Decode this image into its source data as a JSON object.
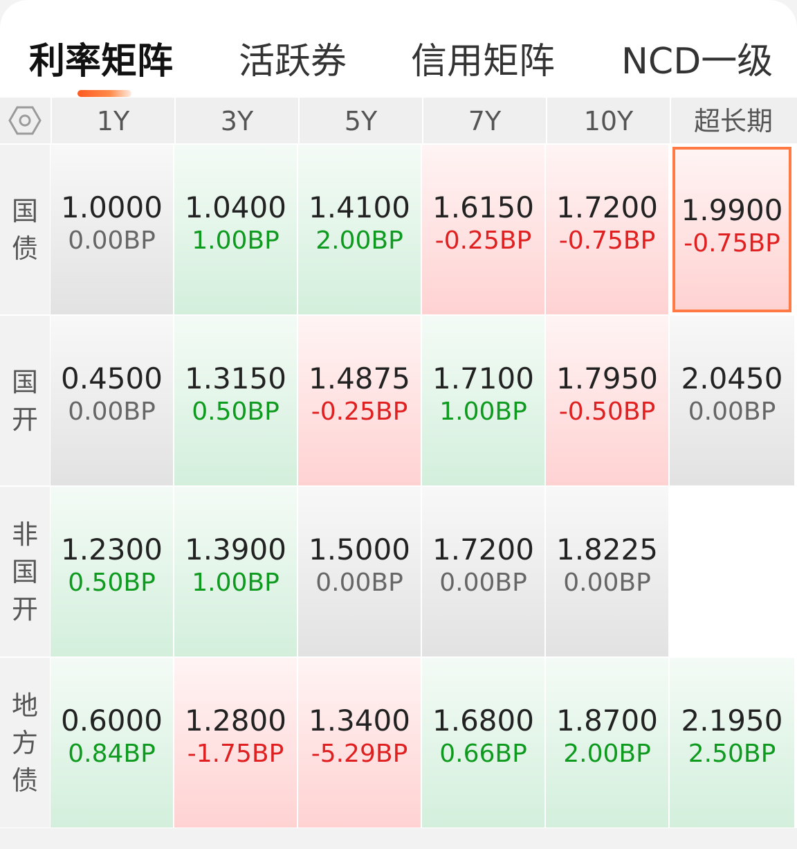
{
  "tabs": [
    {
      "label": "利率矩阵",
      "active": true
    },
    {
      "label": "活跃券",
      "active": false
    },
    {
      "label": "信用矩阵",
      "active": false
    },
    {
      "label": "NCD一级",
      "active": false
    }
  ],
  "settings_icon": "hexagon-settings-icon",
  "columns": [
    "1Y",
    "3Y",
    "5Y",
    "7Y",
    "10Y",
    "超长期"
  ],
  "colors": {
    "up": "#e02020",
    "down": "#0d9a1e",
    "flat": "#666666",
    "accent": "#ff7a45"
  },
  "rows": [
    {
      "label": "国债",
      "cells": [
        {
          "value": "1.0000",
          "change": "0.00BP",
          "trend": "flat"
        },
        {
          "value": "1.0400",
          "change": "1.00BP",
          "trend": "down"
        },
        {
          "value": "1.4100",
          "change": "2.00BP",
          "trend": "down"
        },
        {
          "value": "1.6150",
          "change": "-0.25BP",
          "trend": "up"
        },
        {
          "value": "1.7200",
          "change": "-0.75BP",
          "trend": "up"
        },
        {
          "value": "1.9900",
          "change": "-0.75BP",
          "trend": "up",
          "selected": true
        }
      ]
    },
    {
      "label": "国开",
      "cells": [
        {
          "value": "0.4500",
          "change": "0.00BP",
          "trend": "flat"
        },
        {
          "value": "1.3150",
          "change": "0.50BP",
          "trend": "down"
        },
        {
          "value": "1.4875",
          "change": "-0.25BP",
          "trend": "up"
        },
        {
          "value": "1.7100",
          "change": "1.00BP",
          "trend": "down"
        },
        {
          "value": "1.7950",
          "change": "-0.50BP",
          "trend": "up"
        },
        {
          "value": "2.0450",
          "change": "0.00BP",
          "trend": "flat"
        }
      ]
    },
    {
      "label": "非国开",
      "cells": [
        {
          "value": "1.2300",
          "change": "0.50BP",
          "trend": "down"
        },
        {
          "value": "1.3900",
          "change": "1.00BP",
          "trend": "down"
        },
        {
          "value": "1.5000",
          "change": "0.00BP",
          "trend": "flat"
        },
        {
          "value": "1.7200",
          "change": "0.00BP",
          "trend": "flat"
        },
        {
          "value": "1.8225",
          "change": "0.00BP",
          "trend": "flat"
        },
        null
      ]
    },
    {
      "label": "地方债",
      "cells": [
        {
          "value": "0.6000",
          "change": "0.84BP",
          "trend": "down"
        },
        {
          "value": "1.2800",
          "change": "-1.75BP",
          "trend": "up"
        },
        {
          "value": "1.3400",
          "change": "-5.29BP",
          "trend": "up"
        },
        {
          "value": "1.6800",
          "change": "0.66BP",
          "trend": "down"
        },
        {
          "value": "1.8700",
          "change": "2.00BP",
          "trend": "down"
        },
        {
          "value": "2.1950",
          "change": "2.50BP",
          "trend": "down"
        }
      ]
    }
  ]
}
